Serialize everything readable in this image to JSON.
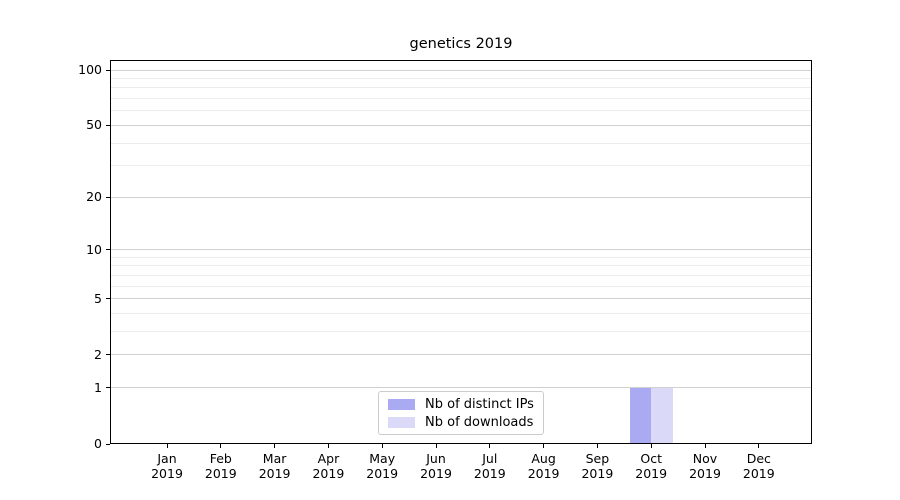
{
  "chart_data": {
    "type": "bar",
    "title": "genetics 2019",
    "categories": [
      "Jan 2019",
      "Feb 2019",
      "Mar 2019",
      "Apr 2019",
      "May 2019",
      "Jun 2019",
      "Jul 2019",
      "Aug 2019",
      "Sep 2019",
      "Oct 2019",
      "Nov 2019",
      "Dec 2019"
    ],
    "series": [
      {
        "name": "Nb of distinct IPs",
        "color": "#aaaaf2",
        "values": [
          0,
          0,
          0,
          0,
          0,
          0,
          0,
          0,
          0,
          1,
          0,
          0
        ]
      },
      {
        "name": "Nb of downloads",
        "color": "#dadaf8",
        "values": [
          0,
          0,
          0,
          0,
          0,
          0,
          0,
          0,
          0,
          1,
          0,
          0
        ]
      }
    ],
    "xlabel": "",
    "ylabel": "",
    "yscale": "log10(1+x)",
    "ylim": [
      0,
      113
    ],
    "yticks": [
      0,
      1,
      2,
      5,
      10,
      20,
      50,
      100
    ],
    "yticks_minor": [
      3,
      4,
      6,
      7,
      8,
      9,
      30,
      40,
      60,
      70,
      80,
      90
    ],
    "grid": "horizontal",
    "legend_position": "lower center"
  },
  "colors": {
    "background": "#ffffff",
    "axis": "#000000",
    "major_grid": "#d0d0d0",
    "minor_grid": "#ececec",
    "legend_border": "#cccccc",
    "text": "#000000"
  }
}
